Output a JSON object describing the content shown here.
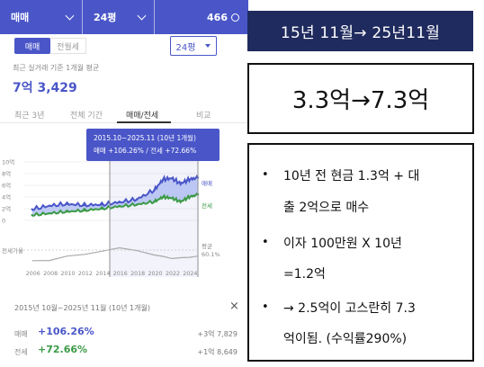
{
  "topbar": {
    "type_label": "매매",
    "size_label": "24평",
    "count_label": "466"
  },
  "segment": {
    "buy_label": "매매",
    "rent_label": "전월세"
  },
  "size_select": {
    "value": "24평"
  },
  "recent": {
    "caption": "최근 실거래 기준 1개월 평균",
    "price": "7억 3,429"
  },
  "tabs": [
    "최근 3년",
    "전체 기간",
    "매매/전세",
    "비교"
  ],
  "chart": {
    "tooltip_period": "2015.10~2025.11 (10년 1개월)",
    "tooltip_change": "매매 +106.26%  /  전세 +72.66%",
    "y_ticks": [
      "10억",
      "8억",
      "6억",
      "4억",
      "2억",
      "0"
    ],
    "ratio_label": "전세가율",
    "avg_label": "평균",
    "avg_value": "60.1%",
    "series_buy_label": "매매",
    "series_rent_label": "전세",
    "x_ticks": [
      "2006",
      "2008",
      "2010",
      "2012",
      "2014",
      "2016",
      "2018",
      "2020",
      "2022",
      "2024"
    ]
  },
  "chart_data": {
    "type": "line",
    "x": [
      2006,
      2008,
      2010,
      2012,
      2014,
      2016,
      2018,
      2020,
      2021,
      2022,
      2023,
      2024,
      2025
    ],
    "series": [
      {
        "name": "매매",
        "values": [
          1.9,
          2.5,
          2.8,
          2.6,
          2.7,
          3.1,
          3.6,
          5.2,
          7.0,
          7.2,
          6.3,
          7.0,
          7.3
        ]
      },
      {
        "name": "전세",
        "values": [
          0.9,
          1.2,
          1.5,
          1.7,
          2.0,
          2.4,
          2.7,
          3.2,
          4.0,
          3.8,
          3.2,
          4.0,
          4.4
        ]
      }
    ],
    "ylabel": "",
    "ylim": [
      0,
      10
    ],
    "colors": {
      "매매": "#4a56c8",
      "전세": "#3b9a46",
      "fill": "#a9b9f0"
    }
  },
  "summary": {
    "period": "2015년 10월~2025년 11월 (10년 1개월)",
    "close": "×",
    "rows": [
      {
        "label": "매매",
        "pct": "+106.26%",
        "amount": "+3억 7,829"
      },
      {
        "label": "전세",
        "pct": "+72.66%",
        "amount": "+1억 8,649"
      }
    ]
  },
  "right": {
    "date_range": "15년 11월→ 25년11월",
    "value_change": "3.3억→7.3억",
    "bullets": [
      {
        "bullet": "•",
        "lines": [
          "10년 전 현금 1.3억 + 대",
          "출 2억으로 매수"
        ]
      },
      {
        "bullet": "•",
        "lines": [
          "이자 100만원 X 10년",
          "=1.2억"
        ]
      },
      {
        "bullet": "•",
        "lines": [
          "→ 2.5억이 고스란히 7.3",
          "억이됨. (수익률290%)"
        ]
      }
    ]
  },
  "colors": {
    "brand": "#4a56c8",
    "navy": "#1f2b5e",
    "green": "#3b9a46"
  }
}
